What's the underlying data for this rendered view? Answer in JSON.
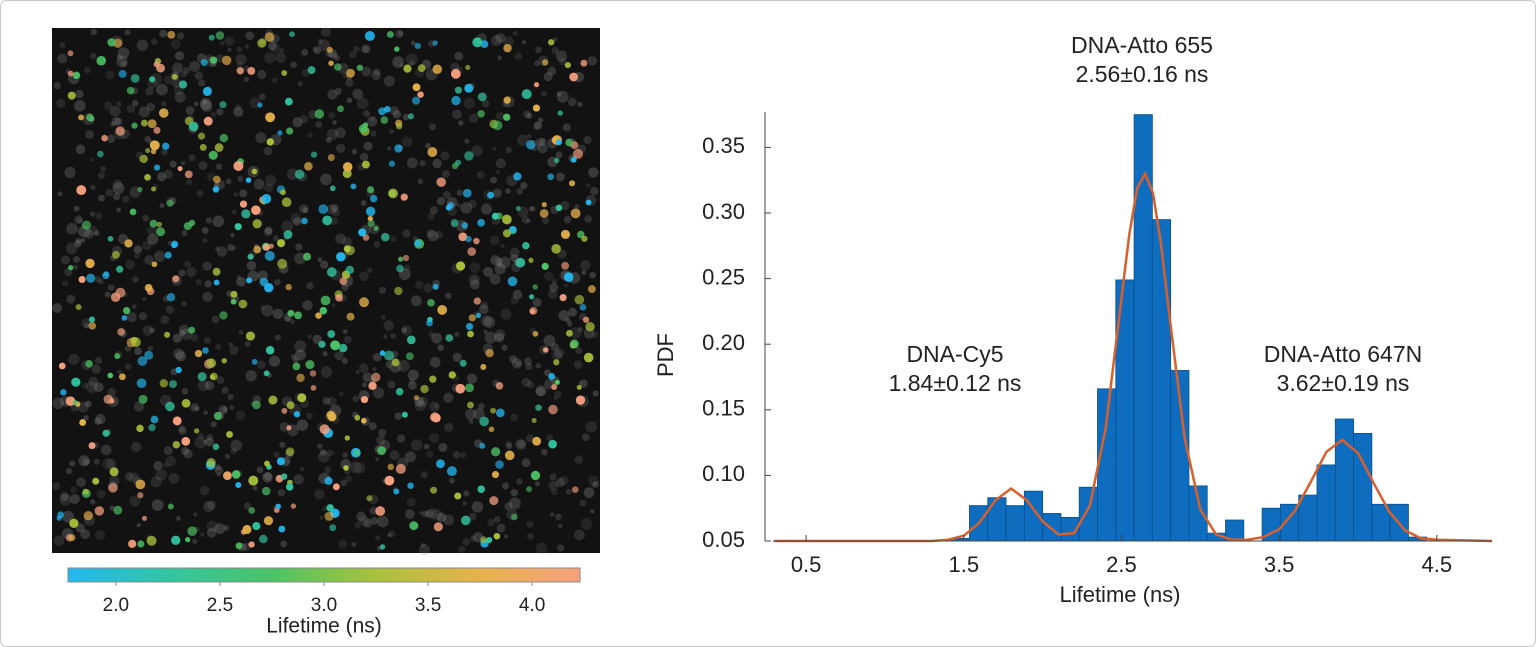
{
  "chart_data": [
    {
      "type": "colorbar",
      "title": "Lifetime (ns)",
      "xlim": [
        1.77,
        4.23
      ],
      "xticks": [
        {
          "value": 2.0,
          "label": "2.0"
        },
        2.5,
        {
          "value": 3.0,
          "label": "3.0"
        },
        3.5,
        {
          "value": 4.0,
          "label": "4.0"
        }
      ],
      "colors": [
        "#22b8f2",
        "#32c6a0",
        "#4cc466",
        "#a9c23a",
        "#e6b24a",
        "#f7a07e"
      ]
    },
    {
      "type": "histogram",
      "x_label": "Lifetime (ns)",
      "y_label": "PDF",
      "bins": [
        1.42,
        1.536,
        1.652,
        1.768,
        1.884,
        2.0,
        2.116,
        2.232,
        2.348,
        2.464,
        2.58,
        2.696,
        2.812,
        2.928,
        3.044,
        3.16,
        3.276,
        3.392,
        3.508,
        3.624,
        3.74,
        3.856,
        3.972,
        4.088,
        4.204,
        4.32,
        4.436
      ],
      "values": [
        0.052,
        0.077,
        0.083,
        0.077,
        0.088,
        0.071,
        0.068,
        0.091,
        0.166,
        0.249,
        0.375,
        0.295,
        0.18,
        0.092,
        0.056,
        0.066,
        0.05,
        0.075,
        0.078,
        0.085,
        0.108,
        0.143,
        0.132,
        0.078,
        0.078,
        0.053
      ],
      "color": "#0f6dc0",
      "fit": {
        "color": "#d95f2b",
        "x": [
          0.3,
          1.3,
          1.4,
          1.5,
          1.6,
          1.7,
          1.8,
          1.9,
          2.0,
          2.1,
          2.2,
          2.3,
          2.4,
          2.5,
          2.55,
          2.6,
          2.65,
          2.7,
          2.75,
          2.8,
          2.9,
          3.0,
          3.1,
          3.2,
          3.3,
          3.4,
          3.5,
          3.6,
          3.7,
          3.8,
          3.9,
          4.0,
          4.1,
          4.2,
          4.3,
          4.4,
          4.5,
          4.85
        ],
        "values": [
          0.05,
          0.05,
          0.051,
          0.054,
          0.064,
          0.081,
          0.09,
          0.081,
          0.065,
          0.055,
          0.056,
          0.077,
          0.136,
          0.235,
          0.284,
          0.319,
          0.33,
          0.315,
          0.277,
          0.226,
          0.129,
          0.074,
          0.055,
          0.051,
          0.051,
          0.053,
          0.059,
          0.073,
          0.095,
          0.118,
          0.127,
          0.117,
          0.094,
          0.072,
          0.058,
          0.052,
          0.051,
          0.05
        ]
      },
      "xlim": [
        0.29,
        4.85
      ],
      "xticks": [
        0.5,
        1.5,
        2.5,
        3.5,
        4.5
      ],
      "ylim": [
        0.05,
        0.377
      ],
      "yticks": [
        0.05,
        {
          "value": 0.1,
          "label": "0.10"
        },
        0.15,
        {
          "value": 0.2,
          "label": "0.20"
        },
        0.25,
        {
          "value": 0.3,
          "label": "0.30"
        },
        0.35
      ],
      "annotations": [
        {
          "name": "DNA-Atto 655",
          "lifetime": "2.56±0.16 ns"
        },
        {
          "name": "DNA-Cy5",
          "lifetime": "1.84±0.12 ns"
        },
        {
          "name": "DNA-Atto 647N",
          "lifetime": "3.62±0.19 ns"
        }
      ]
    }
  ]
}
